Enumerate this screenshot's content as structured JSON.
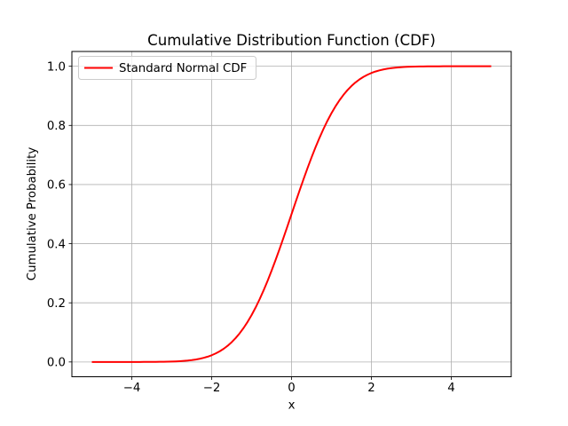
{
  "chart_data": {
    "type": "line",
    "title": "Cumulative Distribution Function (CDF)",
    "xlabel": "x",
    "ylabel": "Cumulative Probability",
    "grid": true,
    "legend": {
      "position": "upper left",
      "entries": [
        "Standard Normal CDF"
      ]
    },
    "xlim": [
      -5.5,
      5.5
    ],
    "ylim": [
      -0.05,
      1.05
    ],
    "xticks": [
      -4,
      -2,
      0,
      2,
      4
    ],
    "xtick_labels": [
      "−4",
      "−2",
      "0",
      "2",
      "4"
    ],
    "yticks": [
      0.0,
      0.2,
      0.4,
      0.6,
      0.8,
      1.0
    ],
    "ytick_labels": [
      "0.0",
      "0.2",
      "0.4",
      "0.6",
      "0.8",
      "1.0"
    ],
    "colors": {
      "line": "#ff0000",
      "grid": "#b0b0b0",
      "axes": "#000000",
      "text": "#000000",
      "legend_border": "#cccccc",
      "background": "#ffffff"
    },
    "series": [
      {
        "name": "Standard Normal CDF",
        "color": "#ff0000",
        "x": [
          -5.0,
          -4.9,
          -4.8,
          -4.7,
          -4.6,
          -4.5,
          -4.4,
          -4.3,
          -4.2,
          -4.1,
          -4.0,
          -3.9,
          -3.8,
          -3.7,
          -3.6,
          -3.5,
          -3.4,
          -3.3,
          -3.2,
          -3.1,
          -3.0,
          -2.9,
          -2.8,
          -2.7,
          -2.6,
          -2.5,
          -2.4,
          -2.3,
          -2.2,
          -2.1,
          -2.0,
          -1.9,
          -1.8,
          -1.7,
          -1.6,
          -1.5,
          -1.4,
          -1.3,
          -1.2,
          -1.1,
          -1.0,
          -0.9,
          -0.8,
          -0.7,
          -0.6,
          -0.5,
          -0.4,
          -0.3,
          -0.2,
          -0.1,
          0.0,
          0.1,
          0.2,
          0.3,
          0.4,
          0.5,
          0.6,
          0.7,
          0.8,
          0.9,
          1.0,
          1.1,
          1.2,
          1.3,
          1.4,
          1.5,
          1.6,
          1.7,
          1.8,
          1.9,
          2.0,
          2.1,
          2.2,
          2.3,
          2.4,
          2.5,
          2.6,
          2.7,
          2.8,
          2.9,
          3.0,
          3.1,
          3.2,
          3.3,
          3.4,
          3.5,
          3.6,
          3.7,
          3.8,
          3.9,
          4.0,
          4.1,
          4.2,
          4.3,
          4.4,
          4.5,
          4.6,
          4.7,
          4.8,
          4.9,
          5.0
        ],
        "y": [
          0.0,
          0.0,
          0.0,
          0.0,
          0.0,
          0.0,
          1e-05,
          1e-05,
          1e-05,
          2e-05,
          3e-05,
          5e-05,
          7e-05,
          0.00011,
          0.00016,
          0.00023,
          0.00034,
          0.00048,
          0.00069,
          0.00097,
          0.00135,
          0.00187,
          0.00256,
          0.00347,
          0.00466,
          0.00621,
          0.0082,
          0.01072,
          0.0139,
          0.01786,
          0.02275,
          0.02872,
          0.03593,
          0.04457,
          0.0548,
          0.06681,
          0.08076,
          0.0968,
          0.11507,
          0.13567,
          0.15866,
          0.18406,
          0.21186,
          0.24196,
          0.27425,
          0.30854,
          0.34458,
          0.38209,
          0.42074,
          0.46017,
          0.5,
          0.53983,
          0.57926,
          0.61791,
          0.65542,
          0.69146,
          0.72575,
          0.75804,
          0.78814,
          0.81594,
          0.84134,
          0.86433,
          0.88493,
          0.9032,
          0.91924,
          0.93319,
          0.9452,
          0.95543,
          0.96407,
          0.97128,
          0.97725,
          0.98214,
          0.9861,
          0.98928,
          0.9918,
          0.99379,
          0.99534,
          0.99653,
          0.99744,
          0.99813,
          0.99865,
          0.99903,
          0.99931,
          0.99952,
          0.99966,
          0.99977,
          0.99984,
          0.99989,
          0.99993,
          0.99995,
          0.99997,
          0.99998,
          0.99999,
          0.99999,
          0.99999,
          1.0,
          1.0,
          1.0,
          1.0,
          1.0,
          1.0
        ]
      }
    ]
  }
}
